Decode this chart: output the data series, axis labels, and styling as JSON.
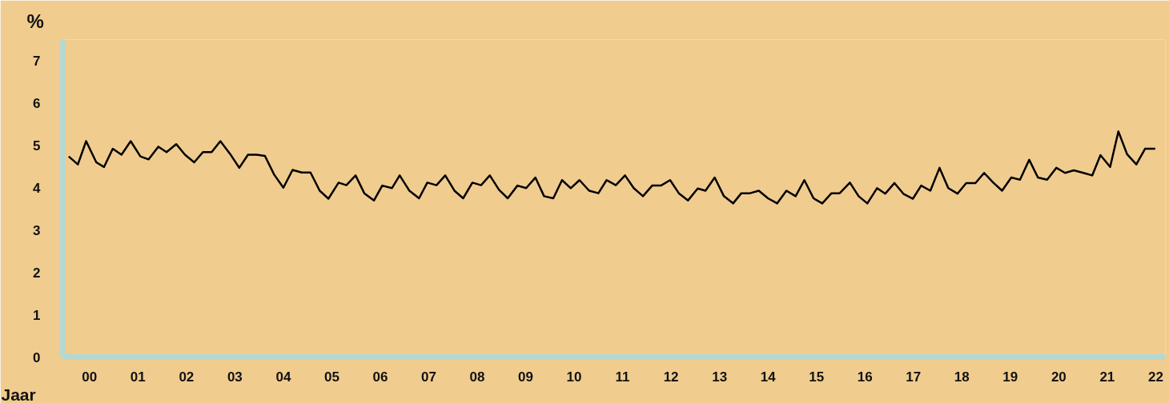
{
  "chart_data": {
    "type": "line",
    "xlabel": "Jaar",
    "ylabel": "%",
    "x": [
      -0.43,
      -0.24,
      -0.07,
      0.14,
      0.3,
      0.48,
      0.66,
      0.85,
      1.05,
      1.22,
      1.42,
      1.59,
      1.79,
      1.97,
      2.16,
      2.34,
      2.52,
      2.7,
      2.9,
      3.09,
      3.27,
      3.45,
      3.62,
      3.81,
      4.0,
      4.19,
      4.38,
      4.56,
      4.75,
      4.93,
      5.14,
      5.3,
      5.49,
      5.67,
      5.87,
      6.04,
      6.24,
      6.4,
      6.6,
      6.8,
      6.97,
      7.16,
      7.34,
      7.53,
      7.71,
      7.9,
      8.08,
      8.26,
      8.45,
      8.63,
      8.83,
      9.01,
      9.2,
      9.38,
      9.57,
      9.75,
      9.93,
      10.11,
      10.31,
      10.5,
      10.67,
      10.86,
      11.05,
      11.23,
      11.42,
      11.61,
      11.79,
      11.98,
      12.16,
      12.35,
      12.55,
      12.71,
      12.9,
      13.09,
      13.28,
      13.45,
      13.63,
      13.81,
      14.0,
      14.19,
      14.38,
      14.57,
      14.75,
      14.94,
      15.12,
      15.31,
      15.48,
      15.69,
      15.87,
      16.05,
      16.25,
      16.42,
      16.61,
      16.8,
      16.99,
      17.16,
      17.35,
      17.54,
      17.72,
      17.91,
      18.09,
      18.28,
      18.46,
      18.64,
      18.83,
      19.02,
      19.2,
      19.39,
      19.57,
      19.76,
      19.95,
      20.13,
      20.31,
      20.51,
      20.69,
      20.86,
      21.06,
      21.23,
      21.41,
      21.6,
      21.78,
      21.99
    ],
    "series": [
      {
        "color": "#000000",
        "values": [
          4.74,
          4.55,
          5.1,
          4.6,
          4.49,
          4.92,
          4.78,
          5.1,
          4.74,
          4.67,
          4.97,
          4.84,
          5.03,
          4.78,
          4.6,
          4.84,
          4.84,
          5.1,
          4.8,
          4.47,
          4.78,
          4.78,
          4.75,
          4.31,
          4.0,
          4.42,
          4.36,
          4.36,
          3.93,
          3.74,
          4.12,
          4.06,
          4.29,
          3.87,
          3.7,
          4.05,
          3.99,
          4.29,
          3.93,
          3.75,
          4.12,
          4.06,
          4.29,
          3.93,
          3.75,
          4.12,
          4.06,
          4.29,
          3.95,
          3.75,
          4.05,
          3.99,
          4.24,
          3.8,
          3.75,
          4.18,
          3.99,
          4.18,
          3.93,
          3.87,
          4.18,
          4.06,
          4.29,
          3.99,
          3.8,
          4.05,
          4.05,
          4.18,
          3.87,
          3.7,
          3.98,
          3.93,
          4.24,
          3.8,
          3.63,
          3.87,
          3.87,
          3.93,
          3.75,
          3.63,
          3.93,
          3.8,
          4.18,
          3.75,
          3.63,
          3.87,
          3.87,
          4.12,
          3.8,
          3.63,
          3.99,
          3.86,
          4.11,
          3.85,
          3.74,
          4.05,
          3.93,
          4.47,
          3.99,
          3.86,
          4.11,
          4.11,
          4.35,
          4.13,
          3.93,
          4.24,
          4.19,
          4.66,
          4.24,
          4.19,
          4.47,
          4.35,
          4.41,
          4.35,
          4.29,
          4.77,
          4.49,
          5.33,
          4.79,
          4.55,
          4.92,
          4.92
        ]
      }
    ],
    "xlim": [
      -0.55,
      22.2
    ],
    "ylim": [
      0,
      7.5
    ],
    "xticks": [
      {
        "value": 0,
        "label": "00"
      },
      {
        "value": 1,
        "label": "01"
      },
      {
        "value": 2,
        "label": "02"
      },
      {
        "value": 3,
        "label": "03"
      },
      {
        "value": 4,
        "label": "04"
      },
      {
        "value": 5,
        "label": "05"
      },
      {
        "value": 6,
        "label": "06"
      },
      {
        "value": 7,
        "label": "07"
      },
      {
        "value": 8,
        "label": "08"
      },
      {
        "value": 9,
        "label": "09"
      },
      {
        "value": 10,
        "label": "10"
      },
      {
        "value": 11,
        "label": "11"
      },
      {
        "value": 12,
        "label": "12"
      },
      {
        "value": 13,
        "label": "13"
      },
      {
        "value": 14,
        "label": "14"
      },
      {
        "value": 15,
        "label": "15"
      },
      {
        "value": 16,
        "label": "16"
      },
      {
        "value": 17,
        "label": "17"
      },
      {
        "value": 18,
        "label": "18"
      },
      {
        "value": 19,
        "label": "19"
      },
      {
        "value": 20,
        "label": "20"
      },
      {
        "value": 21,
        "label": "21"
      },
      {
        "value": 22,
        "label": "22"
      }
    ],
    "yticks": [
      0,
      1,
      2,
      3,
      4,
      5,
      6,
      7
    ],
    "grid": false,
    "marker": "none",
    "line_style": "solid"
  }
}
